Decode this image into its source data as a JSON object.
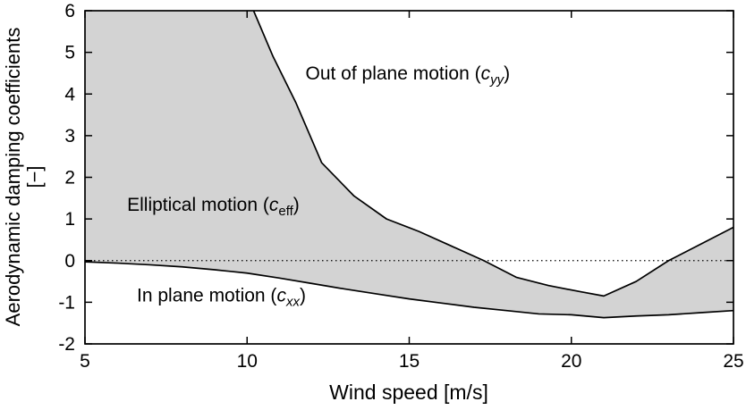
{
  "chart_data": {
    "type": "area",
    "title": "",
    "xlabel": "Wind speed [m/s]",
    "ylabel": [
      "Aerodynamic damping coefficients",
      "[−]"
    ],
    "xlim": [
      5,
      25
    ],
    "ylim": [
      -2,
      6
    ],
    "xticks": [
      "5",
      "10",
      "15",
      "20",
      "25"
    ],
    "xtick_values": [
      5,
      10,
      15,
      20,
      25
    ],
    "yticks": [
      "-2",
      "-1",
      "0",
      "1",
      "2",
      "3",
      "4",
      "5",
      "6"
    ],
    "ytick_values": [
      -2,
      -1,
      0,
      1,
      2,
      3,
      4,
      5,
      6
    ],
    "grid": false,
    "legend": "none (inline annotations)",
    "zero_line_y": 0,
    "colors": {
      "fill": "#d3d3d3",
      "line": "#000000",
      "background": "#ffffff"
    },
    "series": [
      {
        "name": "out-of-plane-cyy",
        "label": "Out of plane motion (c_yy)",
        "points": [
          [
            10.2,
            6.0
          ],
          [
            10.8,
            4.9
          ],
          [
            11.5,
            3.8
          ],
          [
            12.3,
            2.35
          ],
          [
            13.3,
            1.55
          ],
          [
            14.3,
            1.0
          ],
          [
            15.3,
            0.7
          ],
          [
            16.3,
            0.35
          ],
          [
            17.3,
            0.0
          ],
          [
            18.3,
            -0.4
          ],
          [
            19.3,
            -0.6
          ],
          [
            20.3,
            -0.75
          ],
          [
            21.0,
            -0.85
          ],
          [
            22.0,
            -0.5
          ],
          [
            23.0,
            0.0
          ],
          [
            24.0,
            0.4
          ],
          [
            25.0,
            0.8
          ]
        ]
      },
      {
        "name": "in-plane-cxx",
        "label": "In plane motion (c_xx)",
        "points": [
          [
            5,
            -0.03
          ],
          [
            6,
            -0.06
          ],
          [
            7,
            -0.1
          ],
          [
            8,
            -0.15
          ],
          [
            9,
            -0.22
          ],
          [
            10,
            -0.3
          ],
          [
            11,
            -0.42
          ],
          [
            12,
            -0.55
          ],
          [
            13,
            -0.68
          ],
          [
            14,
            -0.8
          ],
          [
            15,
            -0.92
          ],
          [
            16,
            -1.02
          ],
          [
            17,
            -1.12
          ],
          [
            18,
            -1.2
          ],
          [
            19,
            -1.28
          ],
          [
            20,
            -1.3
          ],
          [
            21,
            -1.37
          ],
          [
            22,
            -1.33
          ],
          [
            23,
            -1.3
          ],
          [
            24,
            -1.25
          ],
          [
            25,
            -1.2
          ]
        ]
      }
    ],
    "fill_between": {
      "label": "Elliptical motion (c_eff)",
      "upper": "out-of-plane-cyy",
      "lower": "in-plane-cxx",
      "note": "gray band spans between the two curves; clipped at top of axes for x < 10.2"
    },
    "annotations": [
      {
        "name": "label-out-of-plane",
        "prefix": "Out of plane motion (",
        "var": "c",
        "sub": "yy",
        "sub_italic": true,
        "suffix": ")",
        "x": 11.8,
        "y": 4.35
      },
      {
        "name": "label-elliptical",
        "prefix": "Elliptical motion (",
        "var": "c",
        "sub": "eff",
        "sub_italic": false,
        "suffix": ")",
        "x": 6.3,
        "y": 1.2
      },
      {
        "name": "label-in-plane",
        "prefix": "In plane motion (",
        "var": "c",
        "sub": "xx",
        "sub_italic": true,
        "suffix": ")",
        "x": 6.6,
        "y": -0.98
      }
    ]
  }
}
